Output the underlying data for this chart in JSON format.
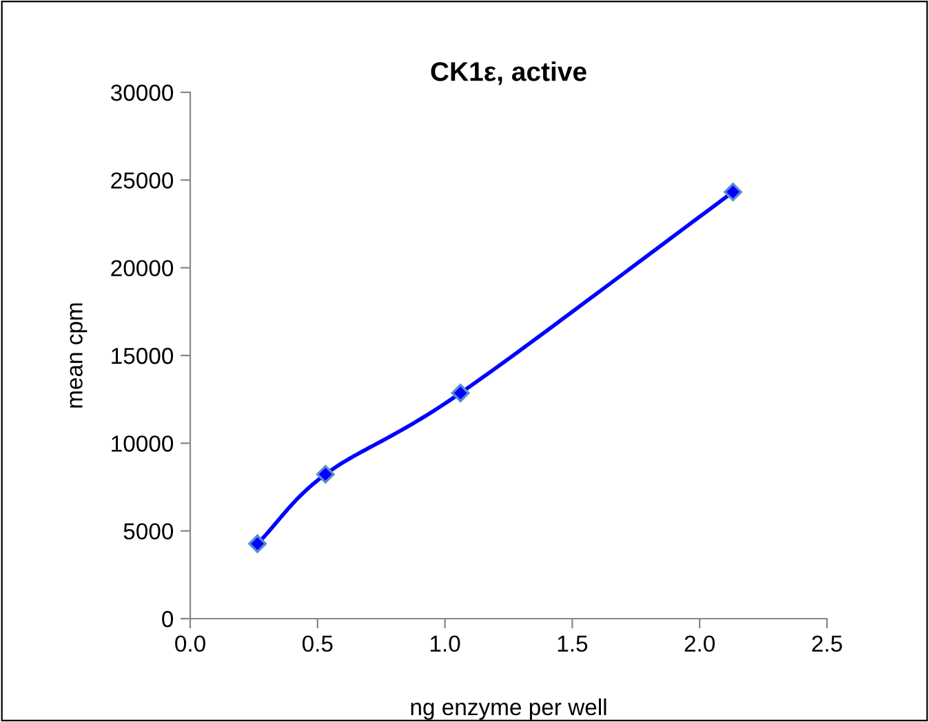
{
  "chart_data": {
    "type": "line",
    "title": "CK1ε, active",
    "xlabel": "ng enzyme per well",
    "ylabel": "mean cpm",
    "x": [
      0.264,
      0.531,
      1.061,
      2.131
    ],
    "series": [
      {
        "color": "#0000ff",
        "values": [
          4270,
          8230,
          12860,
          24320
        ]
      }
    ],
    "xlim": [
      0,
      2.5
    ],
    "xticks": [
      {
        "value": 0,
        "label": "0.0"
      },
      0.5,
      {
        "value": 1,
        "label": "1.0"
      },
      1.5,
      {
        "value": 2,
        "label": "2.0"
      },
      2.5
    ],
    "ylim": [
      0,
      30000
    ],
    "yticks": [
      0,
      5000,
      10000,
      15000,
      20000,
      25000,
      30000
    ],
    "grid": false,
    "legend": false,
    "marker": "diamond",
    "line_style": "solid"
  }
}
